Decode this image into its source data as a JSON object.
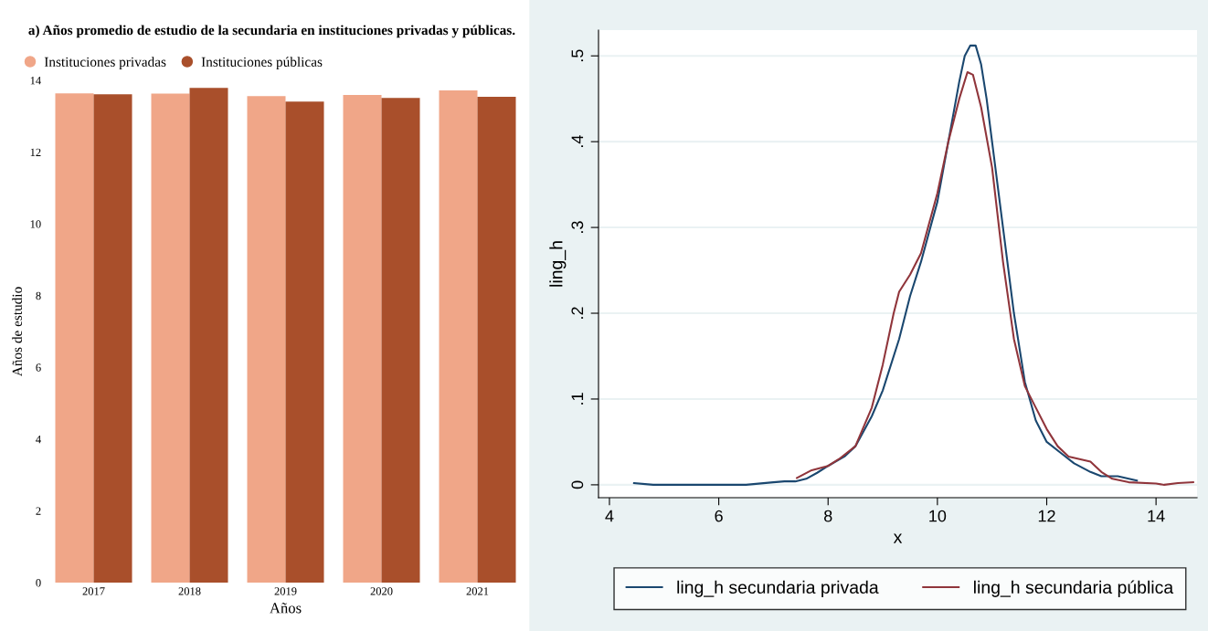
{
  "chart_data": [
    {
      "type": "bar",
      "title": "a) Años promedio de estudio de la secundaria en instituciones privadas y públicas.",
      "xlabel": "Años",
      "ylabel": "Años de estudio",
      "categories": [
        "2017",
        "2018",
        "2019",
        "2020",
        "2021"
      ],
      "series": [
        {
          "name": "Instituciones privadas",
          "color": "#f0a688",
          "values": [
            13.64,
            13.63,
            13.56,
            13.59,
            13.72
          ]
        },
        {
          "name": "Instituciones públicas",
          "color": "#a94f2b",
          "values": [
            13.61,
            13.79,
            13.41,
            13.51,
            13.54
          ]
        }
      ],
      "ylim": [
        0,
        14
      ],
      "yticks": [
        0,
        2,
        4,
        6,
        8,
        10,
        12,
        14
      ],
      "legend": "top left",
      "grid": false
    },
    {
      "type": "line",
      "xlabel": "x",
      "ylabel": "ling_h",
      "series": [
        {
          "name": "ling_h secundaria privada",
          "color": "#1a476f",
          "x": [
            4.45,
            4.8,
            5.5,
            6.5,
            7.0,
            7.2,
            7.4,
            7.6,
            7.8,
            8.0,
            8.3,
            8.5,
            8.8,
            9.0,
            9.3,
            9.5,
            9.7,
            10.0,
            10.2,
            10.4,
            10.5,
            10.6,
            10.7,
            10.8,
            10.9,
            11.0,
            11.2,
            11.4,
            11.6,
            11.8,
            12.0,
            12.3,
            12.5,
            12.8,
            13.0,
            13.3,
            13.65
          ],
          "values": [
            0.002,
            0.0,
            0.0,
            0.0,
            0.003,
            0.004,
            0.004,
            0.007,
            0.014,
            0.022,
            0.033,
            0.045,
            0.08,
            0.11,
            0.17,
            0.22,
            0.26,
            0.33,
            0.4,
            0.47,
            0.5,
            0.512,
            0.512,
            0.49,
            0.45,
            0.4,
            0.3,
            0.2,
            0.12,
            0.075,
            0.05,
            0.035,
            0.025,
            0.015,
            0.01,
            0.01,
            0.005
          ]
        },
        {
          "name": "ling_h secundaria pública",
          "color": "#90353b",
          "x": [
            7.43,
            7.7,
            8.0,
            8.2,
            8.5,
            8.8,
            9.0,
            9.2,
            9.3,
            9.5,
            9.7,
            10.0,
            10.2,
            10.4,
            10.55,
            10.65,
            10.8,
            11.0,
            11.2,
            11.4,
            11.6,
            11.8,
            12.0,
            12.2,
            12.4,
            12.6,
            12.8,
            13.0,
            13.2,
            13.5,
            14.0,
            14.15,
            14.4,
            14.68
          ],
          "values": [
            0.008,
            0.017,
            0.022,
            0.03,
            0.045,
            0.09,
            0.14,
            0.2,
            0.225,
            0.245,
            0.27,
            0.34,
            0.4,
            0.45,
            0.481,
            0.478,
            0.44,
            0.37,
            0.26,
            0.17,
            0.115,
            0.09,
            0.065,
            0.045,
            0.033,
            0.03,
            0.027,
            0.015,
            0.007,
            0.003,
            0.0015,
            0.0,
            0.002,
            0.003
          ]
        }
      ],
      "xlim": [
        3.8,
        14.75
      ],
      "xticks": [
        4,
        6,
        8,
        10,
        12,
        14
      ],
      "ylim": [
        -0.015,
        0.53
      ],
      "yticks": [
        {
          "value": 0,
          "label": "0"
        },
        {
          "value": 0.1,
          "label": ".1"
        },
        {
          "value": 0.2,
          "label": ".2"
        },
        {
          "value": 0.3,
          "label": ".3"
        },
        {
          "value": 0.4,
          "label": ".4"
        },
        {
          "value": 0.5,
          "label": ".5"
        }
      ],
      "grid": "y",
      "legend": "bottom",
      "marker": "none",
      "line_style": "solid"
    }
  ]
}
